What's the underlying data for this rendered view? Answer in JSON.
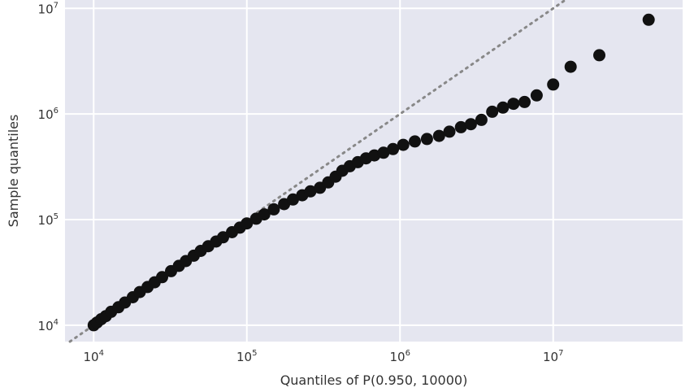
{
  "chart_data": {
    "type": "scatter",
    "title": "",
    "xlabel": "Quantiles of P(0.950, 10000)",
    "ylabel": "Sample quantiles",
    "xscale": "log",
    "yscale": "log",
    "xlim": [
      6500,
      70000000
    ],
    "ylim": [
      7000,
      12000000
    ],
    "grid": true,
    "background": "#e5e6f0",
    "grid_color": "#ffffff",
    "point_color": "#111111",
    "reference_line": {
      "style": "dotted",
      "color": "#888888",
      "slope": 1,
      "label": ""
    },
    "xticks": [
      {
        "base": "10",
        "exp": "4",
        "value": 10000
      },
      {
        "base": "10",
        "exp": "5",
        "value": 100000
      },
      {
        "base": "10",
        "exp": "6",
        "value": 1000000
      },
      {
        "base": "10",
        "exp": "7",
        "value": 10000000
      }
    ],
    "yticks": [
      {
        "base": "10",
        "exp": "4",
        "value": 10000
      },
      {
        "base": "10",
        "exp": "5",
        "value": 100000
      },
      {
        "base": "10",
        "exp": "6",
        "value": 1000000
      },
      {
        "base": "10",
        "exp": "7",
        "value": 10000000
      }
    ],
    "points": [
      [
        10000,
        10000
      ],
      [
        10500,
        10600
      ],
      [
        11200,
        11400
      ],
      [
        12000,
        12200
      ],
      [
        13000,
        13400
      ],
      [
        14500,
        14800
      ],
      [
        16000,
        16400
      ],
      [
        18000,
        18400
      ],
      [
        20000,
        20600
      ],
      [
        22500,
        23000
      ],
      [
        25000,
        25500
      ],
      [
        28000,
        28500
      ],
      [
        32000,
        32500
      ],
      [
        36000,
        36500
      ],
      [
        40000,
        40500
      ],
      [
        45000,
        45500
      ],
      [
        50000,
        50500
      ],
      [
        56000,
        56000
      ],
      [
        63000,
        62000
      ],
      [
        70000,
        68000
      ],
      [
        80000,
        76000
      ],
      [
        90000,
        84000
      ],
      [
        100000,
        92000
      ],
      [
        115000,
        102000
      ],
      [
        130000,
        112000
      ],
      [
        150000,
        125000
      ],
      [
        175000,
        140000
      ],
      [
        200000,
        155000
      ],
      [
        230000,
        170000
      ],
      [
        260000,
        185000
      ],
      [
        300000,
        200000
      ],
      [
        340000,
        225000
      ],
      [
        380000,
        255000
      ],
      [
        420000,
        290000
      ],
      [
        470000,
        320000
      ],
      [
        530000,
        350000
      ],
      [
        600000,
        380000
      ],
      [
        680000,
        405000
      ],
      [
        780000,
        430000
      ],
      [
        900000,
        465000
      ],
      [
        1050000,
        510000
      ],
      [
        1250000,
        550000
      ],
      [
        1500000,
        580000
      ],
      [
        1800000,
        620000
      ],
      [
        2100000,
        680000
      ],
      [
        2500000,
        750000
      ],
      [
        2900000,
        800000
      ],
      [
        3400000,
        880000
      ],
      [
        4000000,
        1050000
      ],
      [
        4700000,
        1150000
      ],
      [
        5500000,
        1250000
      ],
      [
        6500000,
        1300000
      ],
      [
        7800000,
        1500000
      ],
      [
        10000000,
        1900000
      ],
      [
        13000000,
        2800000
      ],
      [
        20000000,
        3600000
      ],
      [
        42000000,
        7800000
      ]
    ]
  }
}
